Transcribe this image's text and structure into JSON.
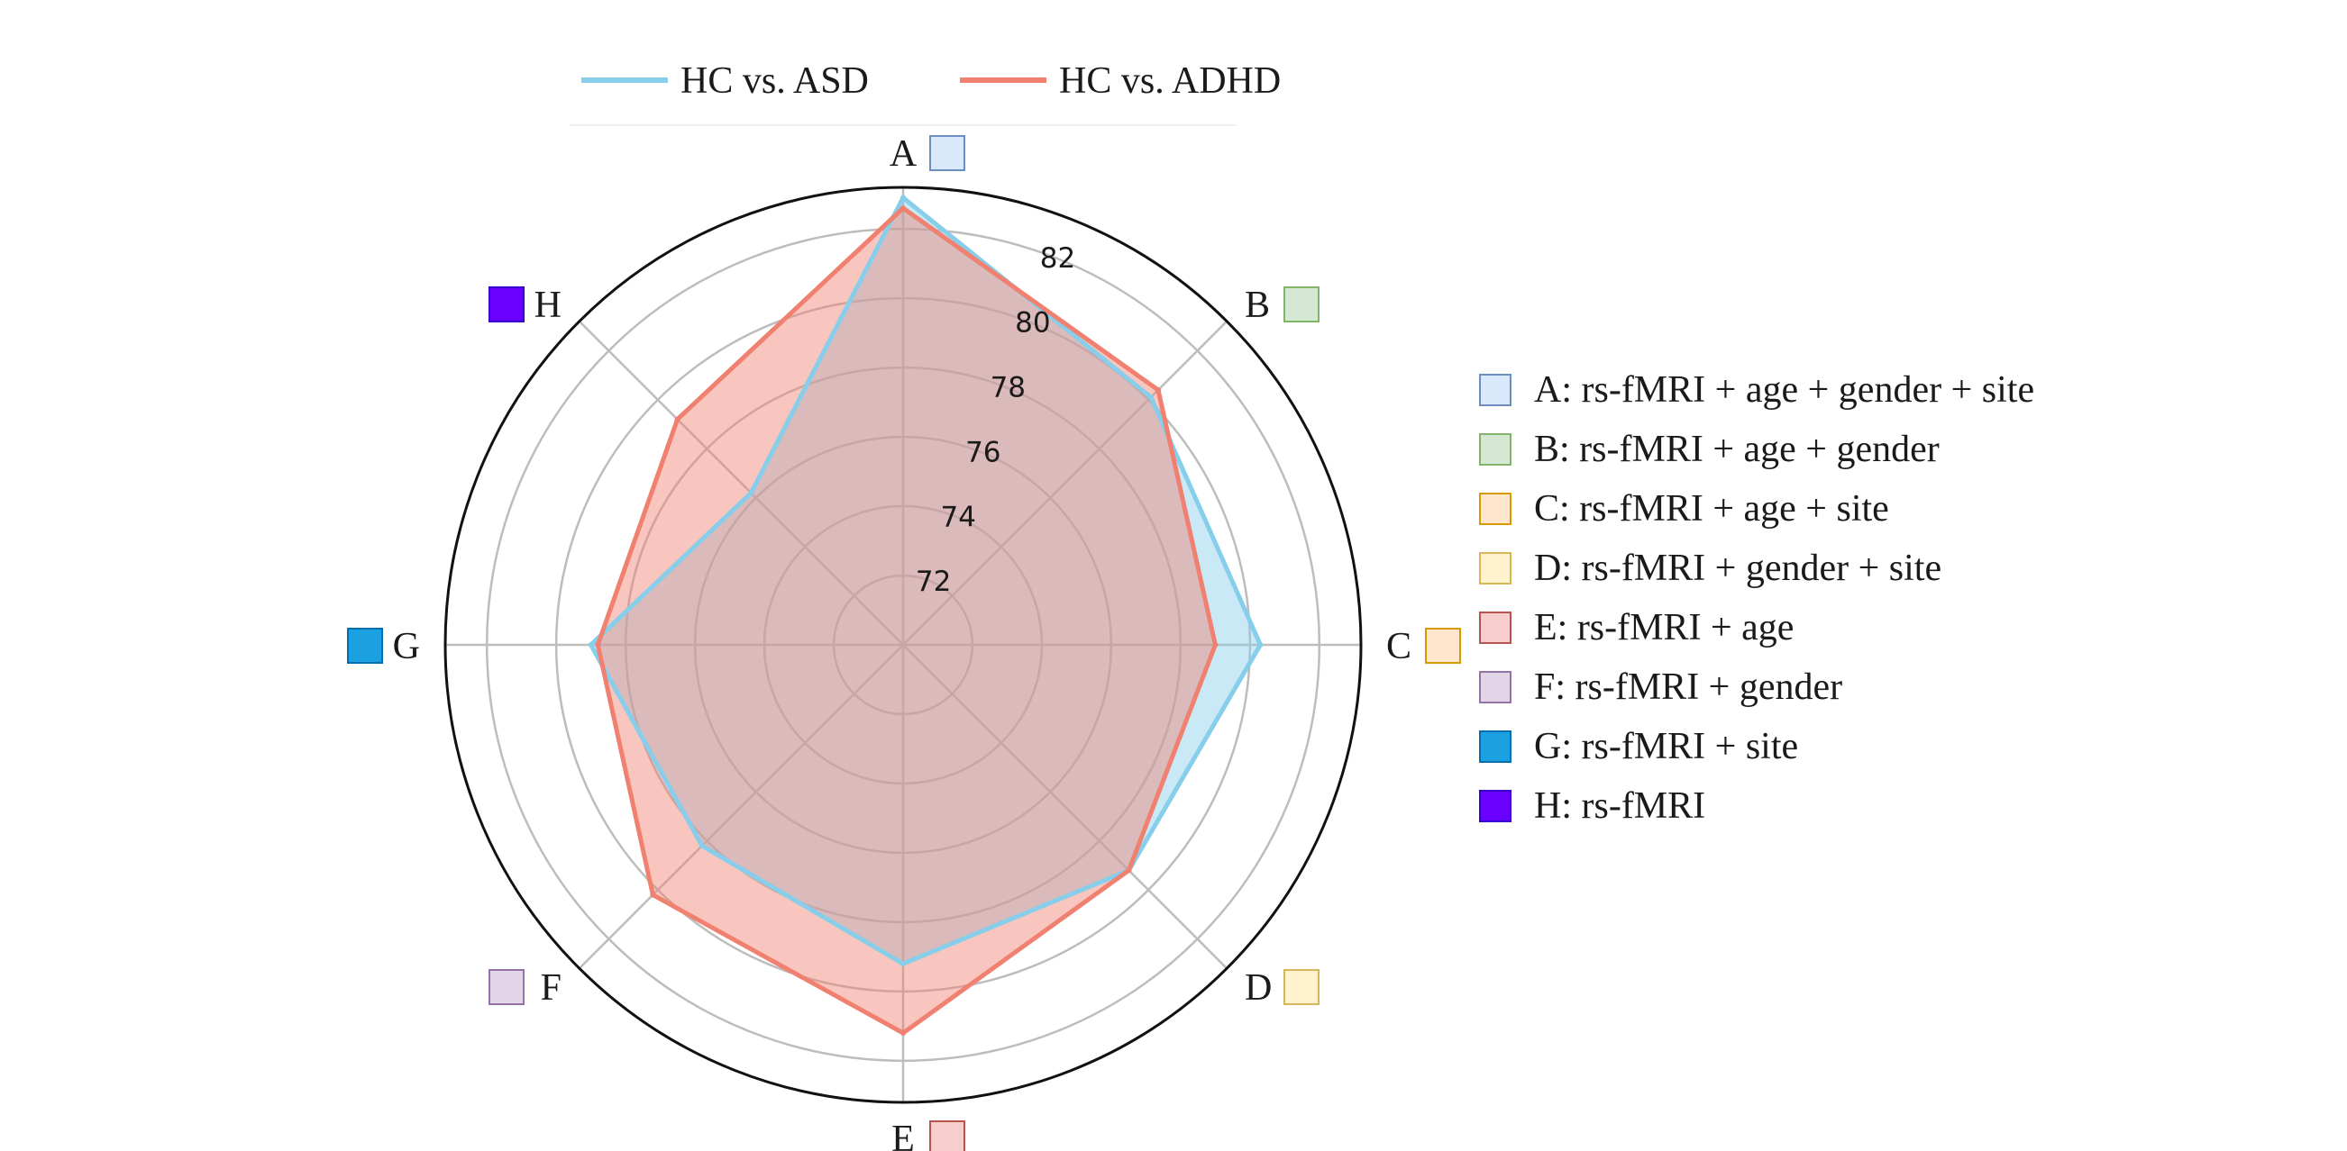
{
  "chart_data": {
    "type": "radar",
    "title": "",
    "categories": [
      "A",
      "B",
      "C",
      "D",
      "E",
      "F",
      "G",
      "H"
    ],
    "category_descriptions": [
      "A: rs-fMRI + age + gender + site",
      "B: rs-fMRI + age + gender",
      "C: rs-fMRI + age + site",
      "D: rs-fMRI + gender + site",
      "E: rs-fMRI + age",
      "F: rs-fMRI + gender",
      "G: rs-fMRI + site",
      "H: rs-fMRI"
    ],
    "category_colors": [
      "#dae8fc",
      "#d5e8d4",
      "#ffe6cc",
      "#fff2cc",
      "#f8cecc",
      "#e1d5e7",
      "#1ba1e2",
      "#6a00ff"
    ],
    "category_border_colors": [
      "#6c8ebf",
      "#82b366",
      "#d79b00",
      "#d6b656",
      "#b85450",
      "#9673a6",
      "#006eaf",
      "#3700cc"
    ],
    "radial_ticks": [
      72,
      74,
      76,
      78,
      80,
      82
    ],
    "rlim": [
      70,
      83.2
    ],
    "series": [
      {
        "name": "HC vs. ASD",
        "color": "#87ceeb",
        "fill_color": "#87ceeb",
        "values": [
          82.9,
          80.1,
          80.3,
          79.2,
          79.2,
          78.2,
          79.0,
          76.2
        ]
      },
      {
        "name": "HC vs. ADHD",
        "color": "#f08070",
        "fill_color": "#f08070",
        "values": [
          82.6,
          80.4,
          79.0,
          79.2,
          81.2,
          80.2,
          78.8,
          79.2
        ]
      }
    ],
    "grid": true,
    "legend_position": "top-center",
    "category_legend_position": "right"
  }
}
